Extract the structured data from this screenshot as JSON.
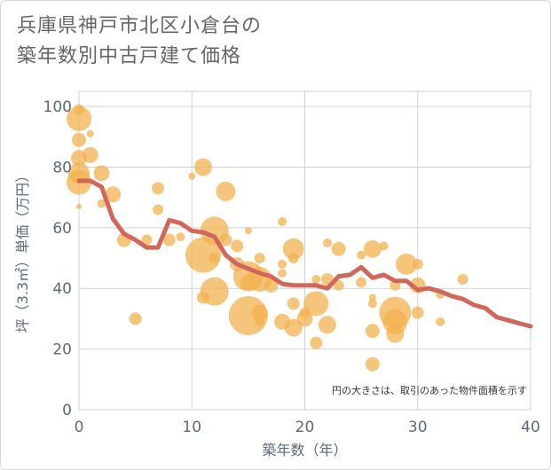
{
  "title": {
    "line1": "兵庫県神戸市北区小倉台の",
    "line2": "築年数別中古戸建て価格"
  },
  "colors": {
    "bubble": "#f2b24f",
    "line": "#d0675a",
    "grid": "#c9d3dd",
    "axis": "#5a6b7b"
  },
  "chart_data": {
    "type": "scatter",
    "xlabel": "築年数（年）",
    "ylabel": "坪（3.3㎡）単価（万円）",
    "xlim": [
      0,
      40
    ],
    "ylim": [
      0,
      105
    ],
    "xticks": [
      "0",
      "10",
      "20",
      "30",
      "40"
    ],
    "yticks": [
      "0",
      "20",
      "40",
      "60",
      "80",
      "100"
    ],
    "note": "円の大きさは、取引のあった物件面積を示す",
    "grid": true,
    "bubbles": [
      {
        "x": 0,
        "y": 96,
        "r": 14
      },
      {
        "x": 0,
        "y": 99,
        "r": 6
      },
      {
        "x": 0,
        "y": 89,
        "r": 8
      },
      {
        "x": 0,
        "y": 83,
        "r": 9
      },
      {
        "x": 0,
        "y": 78,
        "r": 12
      },
      {
        "x": 0,
        "y": 75,
        "r": 14
      },
      {
        "x": 0,
        "y": 67,
        "r": 3
      },
      {
        "x": 1,
        "y": 91,
        "r": 4
      },
      {
        "x": 1,
        "y": 84,
        "r": 9
      },
      {
        "x": 2,
        "y": 78,
        "r": 9
      },
      {
        "x": 2,
        "y": 68,
        "r": 5
      },
      {
        "x": 3,
        "y": 71,
        "r": 9
      },
      {
        "x": 4,
        "y": 56,
        "r": 8
      },
      {
        "x": 5,
        "y": 30,
        "r": 7
      },
      {
        "x": 6,
        "y": 56,
        "r": 6
      },
      {
        "x": 7,
        "y": 73,
        "r": 7
      },
      {
        "x": 7,
        "y": 66,
        "r": 6
      },
      {
        "x": 8,
        "y": 56,
        "r": 7
      },
      {
        "x": 9,
        "y": 57,
        "r": 5
      },
      {
        "x": 10,
        "y": 77,
        "r": 4
      },
      {
        "x": 11,
        "y": 80,
        "r": 10
      },
      {
        "x": 11,
        "y": 51,
        "r": 20
      },
      {
        "x": 11,
        "y": 37,
        "r": 7
      },
      {
        "x": 12,
        "y": 59,
        "r": 16
      },
      {
        "x": 12,
        "y": 50,
        "r": 6
      },
      {
        "x": 12,
        "y": 39,
        "r": 16
      },
      {
        "x": 13,
        "y": 72,
        "r": 11
      },
      {
        "x": 13,
        "y": 56,
        "r": 7
      },
      {
        "x": 14,
        "y": 54,
        "r": 7
      },
      {
        "x": 14,
        "y": 48,
        "r": 8
      },
      {
        "x": 15,
        "y": 44,
        "r": 17
      },
      {
        "x": 15,
        "y": 42,
        "r": 9
      },
      {
        "x": 15,
        "y": 31,
        "r": 22
      },
      {
        "x": 15,
        "y": 59,
        "r": 4
      },
      {
        "x": 16,
        "y": 50,
        "r": 6
      },
      {
        "x": 16,
        "y": 43,
        "r": 14
      },
      {
        "x": 16,
        "y": 32,
        "r": 9
      },
      {
        "x": 16,
        "y": 29,
        "r": 5
      },
      {
        "x": 17,
        "y": 41,
        "r": 8
      },
      {
        "x": 18,
        "y": 62,
        "r": 5
      },
      {
        "x": 18,
        "y": 48,
        "r": 5
      },
      {
        "x": 18,
        "y": 45,
        "r": 5
      },
      {
        "x": 18,
        "y": 29,
        "r": 9
      },
      {
        "x": 19,
        "y": 53,
        "r": 12
      },
      {
        "x": 19,
        "y": 50,
        "r": 6
      },
      {
        "x": 19,
        "y": 35,
        "r": 7
      },
      {
        "x": 19,
        "y": 27,
        "r": 10
      },
      {
        "x": 20,
        "y": 32,
        "r": 6
      },
      {
        "x": 20,
        "y": 30,
        "r": 9
      },
      {
        "x": 21,
        "y": 43,
        "r": 5
      },
      {
        "x": 21,
        "y": 35,
        "r": 14
      },
      {
        "x": 21,
        "y": 22,
        "r": 7
      },
      {
        "x": 22,
        "y": 55,
        "r": 5
      },
      {
        "x": 22,
        "y": 43,
        "r": 7
      },
      {
        "x": 22,
        "y": 28,
        "r": 10
      },
      {
        "x": 23,
        "y": 53,
        "r": 8
      },
      {
        "x": 23,
        "y": 41,
        "r": 6
      },
      {
        "x": 25,
        "y": 51,
        "r": 5
      },
      {
        "x": 25,
        "y": 42,
        "r": 6
      },
      {
        "x": 26,
        "y": 53,
        "r": 10
      },
      {
        "x": 26,
        "y": 37,
        "r": 4
      },
      {
        "x": 26,
        "y": 35,
        "r": 5
      },
      {
        "x": 26,
        "y": 26,
        "r": 8
      },
      {
        "x": 26,
        "y": 15,
        "r": 8
      },
      {
        "x": 27,
        "y": 54,
        "r": 5
      },
      {
        "x": 28,
        "y": 41,
        "r": 6
      },
      {
        "x": 28,
        "y": 32,
        "r": 18
      },
      {
        "x": 28,
        "y": 29,
        "r": 14
      },
      {
        "x": 28,
        "y": 25,
        "r": 10
      },
      {
        "x": 29,
        "y": 48,
        "r": 12
      },
      {
        "x": 30,
        "y": 48,
        "r": 6
      },
      {
        "x": 30,
        "y": 41,
        "r": 9
      },
      {
        "x": 30,
        "y": 32,
        "r": 7
      },
      {
        "x": 32,
        "y": 38,
        "r": 5
      },
      {
        "x": 32,
        "y": 29,
        "r": 5
      },
      {
        "x": 34,
        "y": 43,
        "r": 6
      }
    ],
    "series": [
      {
        "x": [
          0,
          1,
          2,
          3,
          4,
          5,
          6,
          7,
          8,
          9,
          10,
          11,
          12,
          13,
          14,
          15,
          16,
          17,
          18,
          19,
          20,
          21,
          22,
          23,
          24,
          25,
          26,
          27,
          28,
          29,
          30,
          31,
          32,
          33,
          34,
          35,
          36,
          37,
          38,
          39,
          40
        ],
        "y": [
          75.5,
          75.5,
          73.5,
          63,
          58,
          56,
          53.5,
          53.5,
          62.5,
          61.5,
          59,
          58.5,
          57,
          51,
          48,
          46.5,
          45,
          44,
          41.5,
          41,
          41,
          41,
          40,
          44,
          44.5,
          47,
          43.5,
          44.5,
          42.5,
          42.5,
          39.5,
          40,
          39,
          37.5,
          36.5,
          34.5,
          33.5,
          30.5,
          29.5,
          28.5,
          27.5
        ]
      }
    ]
  }
}
